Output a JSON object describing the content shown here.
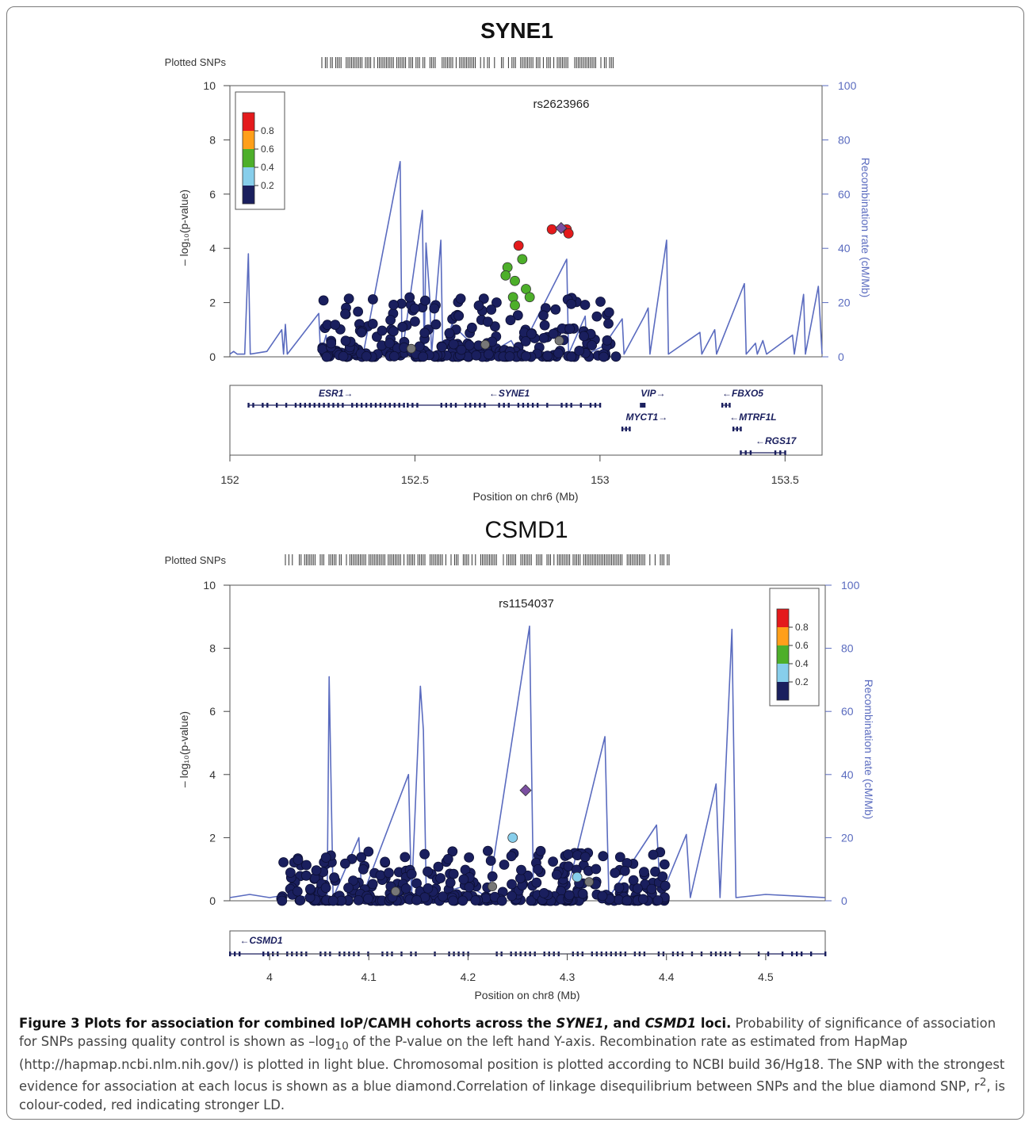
{
  "caption": {
    "label": "Figure 3",
    "title_parts": [
      " Plots for association for combined IoP/CAMH cohorts across the ",
      "SYNE1",
      ", and ",
      "CSMD1",
      " loci."
    ],
    "text_1": " Probability of significance of association for SNPs passing quality control is shown as –log",
    "sub": "10",
    "text_2": " of the P-value on the left hand Y-axis. Recombination rate as estimated from HapMap (http://hapmap.ncbi.nlm.nih.gov/) is plotted in light blue. Chromosomal position is plotted according to NCBI build 36/Hg18. The SNP with the strongest evidence for association at each locus is shown as a blue diamond.Correlation of linkage disequilibrium between SNPs and the blue diamond SNP, r",
    "sup": "2",
    "text_3": ", is colour-coded, red indicating stronger LD."
  },
  "colors": {
    "r2_08": "#e41a1c",
    "r2_06": "#ff9f1a",
    "r2_04": "#4daf2a",
    "r2_02": "#87ceeb",
    "r2_00": "#1a1f5e",
    "recomb": "#5a6bbf",
    "lead": "#7b4fa0",
    "missing": "#777777"
  },
  "chart_data": [
    {
      "type": "scatter",
      "title": "SYNE1",
      "plotted_snps_label": "Plotted SNPs",
      "lead_snp": "rs2623966",
      "xlabel": "Position on chr6 (Mb)",
      "ylabel": "– log₁₀(p-value)",
      "ylabel_right": "Recombination rate (cM/Mb)",
      "xlim": [
        152.0,
        153.6
      ],
      "ylim": [
        0,
        10
      ],
      "ylim_right": [
        0,
        100
      ],
      "xticks": [
        152,
        152.5,
        153,
        153.5
      ],
      "xtick_labels": [
        "152",
        "152.5",
        "153",
        "153.5"
      ],
      "yticks": [
        0,
        2,
        4,
        6,
        8,
        10
      ],
      "yticks_right": [
        0,
        20,
        40,
        60,
        80,
        100
      ],
      "legend": {
        "title": "r²",
        "placement": "top-left",
        "labels": [
          "0.8",
          "0.6",
          "0.4",
          "0.2"
        ]
      },
      "recombination": [
        [
          152.0,
          1
        ],
        [
          152.01,
          2
        ],
        [
          152.02,
          1
        ],
        [
          152.04,
          1
        ],
        [
          152.05,
          38
        ],
        [
          152.055,
          1
        ],
        [
          152.1,
          2
        ],
        [
          152.14,
          10
        ],
        [
          152.145,
          1
        ],
        [
          152.15,
          12
        ],
        [
          152.155,
          1
        ],
        [
          152.24,
          16
        ],
        [
          152.245,
          1
        ],
        [
          152.26,
          8
        ],
        [
          152.265,
          1
        ],
        [
          152.34,
          4
        ],
        [
          152.36,
          1
        ],
        [
          152.46,
          72
        ],
        [
          152.465,
          1
        ],
        [
          152.52,
          54
        ],
        [
          152.525,
          1
        ],
        [
          152.53,
          42
        ],
        [
          152.54,
          22
        ],
        [
          152.545,
          1
        ],
        [
          152.57,
          43
        ],
        [
          152.575,
          1
        ],
        [
          152.6,
          12
        ],
        [
          152.66,
          4
        ],
        [
          152.7,
          1
        ],
        [
          152.76,
          6
        ],
        [
          152.78,
          1
        ],
        [
          152.91,
          36
        ],
        [
          152.915,
          1
        ],
        [
          152.96,
          15
        ],
        [
          152.965,
          1
        ],
        [
          153.01,
          4
        ],
        [
          153.06,
          14
        ],
        [
          153.065,
          1
        ],
        [
          153.12,
          15
        ],
        [
          153.13,
          18
        ],
        [
          153.135,
          1
        ],
        [
          153.18,
          43
        ],
        [
          153.185,
          1
        ],
        [
          153.27,
          9
        ],
        [
          153.275,
          1
        ],
        [
          153.31,
          10
        ],
        [
          153.315,
          1
        ],
        [
          153.39,
          27
        ],
        [
          153.395,
          1
        ],
        [
          153.42,
          5
        ],
        [
          153.425,
          1
        ],
        [
          153.44,
          6
        ],
        [
          153.45,
          1
        ],
        [
          153.52,
          8
        ],
        [
          153.525,
          1
        ],
        [
          153.55,
          23
        ],
        [
          153.555,
          1
        ],
        [
          153.59,
          26
        ],
        [
          153.6,
          1
        ]
      ],
      "snps_ld": [
        {
          "x": 152.78,
          "y": 4.1,
          "r2": "0.8"
        },
        {
          "x": 152.87,
          "y": 4.7,
          "r2": "0.8"
        },
        {
          "x": 152.91,
          "y": 4.7,
          "r2": "0.8"
        },
        {
          "x": 152.915,
          "y": 4.55,
          "r2": "0.8"
        },
        {
          "x": 152.75,
          "y": 3.3,
          "r2": "0.4"
        },
        {
          "x": 152.745,
          "y": 3.0,
          "r2": "0.4"
        },
        {
          "x": 152.77,
          "y": 2.8,
          "r2": "0.4"
        },
        {
          "x": 152.79,
          "y": 3.6,
          "r2": "0.4"
        },
        {
          "x": 152.765,
          "y": 2.2,
          "r2": "0.4"
        },
        {
          "x": 152.8,
          "y": 2.5,
          "r2": "0.4"
        },
        {
          "x": 152.81,
          "y": 2.2,
          "r2": "0.4"
        },
        {
          "x": 152.77,
          "y": 1.9,
          "r2": "0.4"
        }
      ],
      "lead": {
        "x": 152.895,
        "y": 4.75
      },
      "snp_cloud": {
        "x_range": [
          152.25,
          153.05
        ],
        "y_max": 2.2,
        "count": 280,
        "seed": 7
      },
      "genes": [
        {
          "name": "ESR1",
          "dir": "right",
          "start": 152.05,
          "end": 152.47,
          "row": 0,
          "label_x": 152.24
        },
        {
          "name": "SYNE1",
          "dir": "left",
          "start": 152.48,
          "end": 153.0,
          "row": 0,
          "label_x": 152.7
        },
        {
          "name": "VIP",
          "dir": "right",
          "start": 153.11,
          "end": 153.12,
          "row": 0,
          "label_x": 153.11
        },
        {
          "name": "FBXO5",
          "dir": "left",
          "start": 153.33,
          "end": 153.35,
          "row": 0,
          "label_x": 153.33
        },
        {
          "name": "MYCT1",
          "dir": "right",
          "start": 153.06,
          "end": 153.08,
          "row": 1,
          "label_x": 153.07
        },
        {
          "name": "MTRF1L",
          "dir": "left",
          "start": 153.36,
          "end": 153.38,
          "row": 1,
          "label_x": 153.35
        },
        {
          "name": "RGS17",
          "dir": "left",
          "start": 153.38,
          "end": 153.5,
          "row": 2,
          "label_x": 153.42
        }
      ]
    },
    {
      "type": "scatter",
      "title": "CSMD1",
      "plotted_snps_label": "Plotted SNPs",
      "lead_snp": "rs1154037",
      "xlabel": "Position on chr8 (Mb)",
      "ylabel": "– log₁₀(p-value)",
      "ylabel_right": "Recombination rate (cM/Mb)",
      "xlim": [
        3.96,
        4.56
      ],
      "ylim": [
        0,
        10
      ],
      "ylim_right": [
        0,
        100
      ],
      "xticks": [
        4,
        4.1,
        4.2,
        4.3,
        4.4,
        4.5
      ],
      "xtick_labels": [
        "4",
        "4.1",
        "4.2",
        "4.3",
        "4.4",
        "4.5"
      ],
      "yticks": [
        0,
        2,
        4,
        6,
        8,
        10
      ],
      "yticks_right": [
        0,
        20,
        40,
        60,
        80,
        100
      ],
      "legend": {
        "title": "r²",
        "placement": "top-right",
        "labels": [
          "0.8",
          "0.6",
          "0.4",
          "0.2"
        ]
      },
      "recombination": [
        [
          3.96,
          1
        ],
        [
          3.98,
          2
        ],
        [
          4.0,
          1
        ],
        [
          4.02,
          2
        ],
        [
          4.04,
          1
        ],
        [
          4.058,
          1
        ],
        [
          4.06,
          71
        ],
        [
          4.064,
          1
        ],
        [
          4.09,
          20
        ],
        [
          4.093,
          1
        ],
        [
          4.14,
          40
        ],
        [
          4.143,
          1
        ],
        [
          4.152,
          68
        ],
        [
          4.155,
          54
        ],
        [
          4.158,
          1
        ],
        [
          4.2,
          5
        ],
        [
          4.22,
          1
        ],
        [
          4.262,
          87
        ],
        [
          4.266,
          1
        ],
        [
          4.3,
          3
        ],
        [
          4.338,
          52
        ],
        [
          4.342,
          1
        ],
        [
          4.39,
          24
        ],
        [
          4.394,
          1
        ],
        [
          4.42,
          21
        ],
        [
          4.424,
          1
        ],
        [
          4.45,
          37
        ],
        [
          4.454,
          1
        ],
        [
          4.466,
          86
        ],
        [
          4.47,
          1
        ],
        [
          4.5,
          2
        ],
        [
          4.56,
          1
        ]
      ],
      "snps_ld": [
        {
          "x": 4.245,
          "y": 2.0,
          "r2": "0.2"
        },
        {
          "x": 4.31,
          "y": 0.75,
          "r2": "0.2"
        }
      ],
      "lead": {
        "x": 4.258,
        "y": 3.5
      },
      "snp_cloud": {
        "x_range": [
          4.01,
          4.4
        ],
        "y_max": 1.6,
        "count": 340,
        "seed": 13
      },
      "genes": [
        {
          "name": "CSMD1",
          "dir": "left",
          "start": 3.96,
          "end": 4.56,
          "row": 0,
          "label_x": 3.97
        }
      ]
    }
  ]
}
